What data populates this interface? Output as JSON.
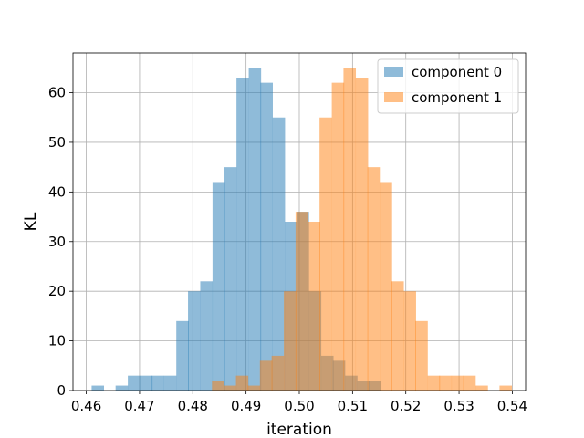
{
  "chart_data": {
    "type": "histogram",
    "xlabel": "iteration",
    "ylabel": "KL",
    "xlim": [
      0.4575,
      0.5425
    ],
    "ylim": [
      0,
      68
    ],
    "xticks": [
      "0.46",
      "0.47",
      "0.48",
      "0.49",
      "0.50",
      "0.51",
      "0.52",
      "0.53",
      "0.54"
    ],
    "yticks": [
      "0",
      "10",
      "20",
      "30",
      "40",
      "50",
      "60"
    ],
    "grid": true,
    "legend_position": "top-right",
    "bin_width": 0.00226,
    "series": [
      {
        "name": "component 0",
        "color": "#1f77b4",
        "opacity": 0.5,
        "bins": [
          [
            0.461,
            1
          ],
          [
            0.4633,
            0
          ],
          [
            0.4655,
            1
          ],
          [
            0.4678,
            3
          ],
          [
            0.4701,
            3
          ],
          [
            0.4723,
            3
          ],
          [
            0.4746,
            3
          ],
          [
            0.4769,
            14
          ],
          [
            0.4791,
            20
          ],
          [
            0.4814,
            22
          ],
          [
            0.4837,
            42
          ],
          [
            0.4859,
            45
          ],
          [
            0.4882,
            63
          ],
          [
            0.4905,
            65
          ],
          [
            0.4927,
            62
          ],
          [
            0.495,
            55
          ],
          [
            0.4973,
            34
          ],
          [
            0.4995,
            36
          ],
          [
            0.5018,
            20
          ],
          [
            0.5041,
            7
          ],
          [
            0.5063,
            6
          ],
          [
            0.5086,
            3
          ],
          [
            0.5109,
            2
          ],
          [
            0.5131,
            2
          ]
        ]
      },
      {
        "name": "component 1",
        "color": "#ff7f0e",
        "opacity": 0.5,
        "bins": [
          [
            0.4836,
            2
          ],
          [
            0.4858,
            1
          ],
          [
            0.4881,
            3
          ],
          [
            0.4903,
            1
          ],
          [
            0.4926,
            6
          ],
          [
            0.4948,
            7
          ],
          [
            0.4971,
            20
          ],
          [
            0.4993,
            36
          ],
          [
            0.5016,
            34
          ],
          [
            0.5038,
            55
          ],
          [
            0.5061,
            62
          ],
          [
            0.5083,
            65
          ],
          [
            0.5106,
            63
          ],
          [
            0.5128,
            45
          ],
          [
            0.5151,
            42
          ],
          [
            0.5173,
            22
          ],
          [
            0.5196,
            20
          ],
          [
            0.5218,
            14
          ],
          [
            0.5241,
            3
          ],
          [
            0.5263,
            3
          ],
          [
            0.5286,
            3
          ],
          [
            0.5308,
            3
          ],
          [
            0.5331,
            1
          ],
          [
            0.5353,
            0
          ],
          [
            0.5376,
            1
          ]
        ]
      }
    ]
  }
}
